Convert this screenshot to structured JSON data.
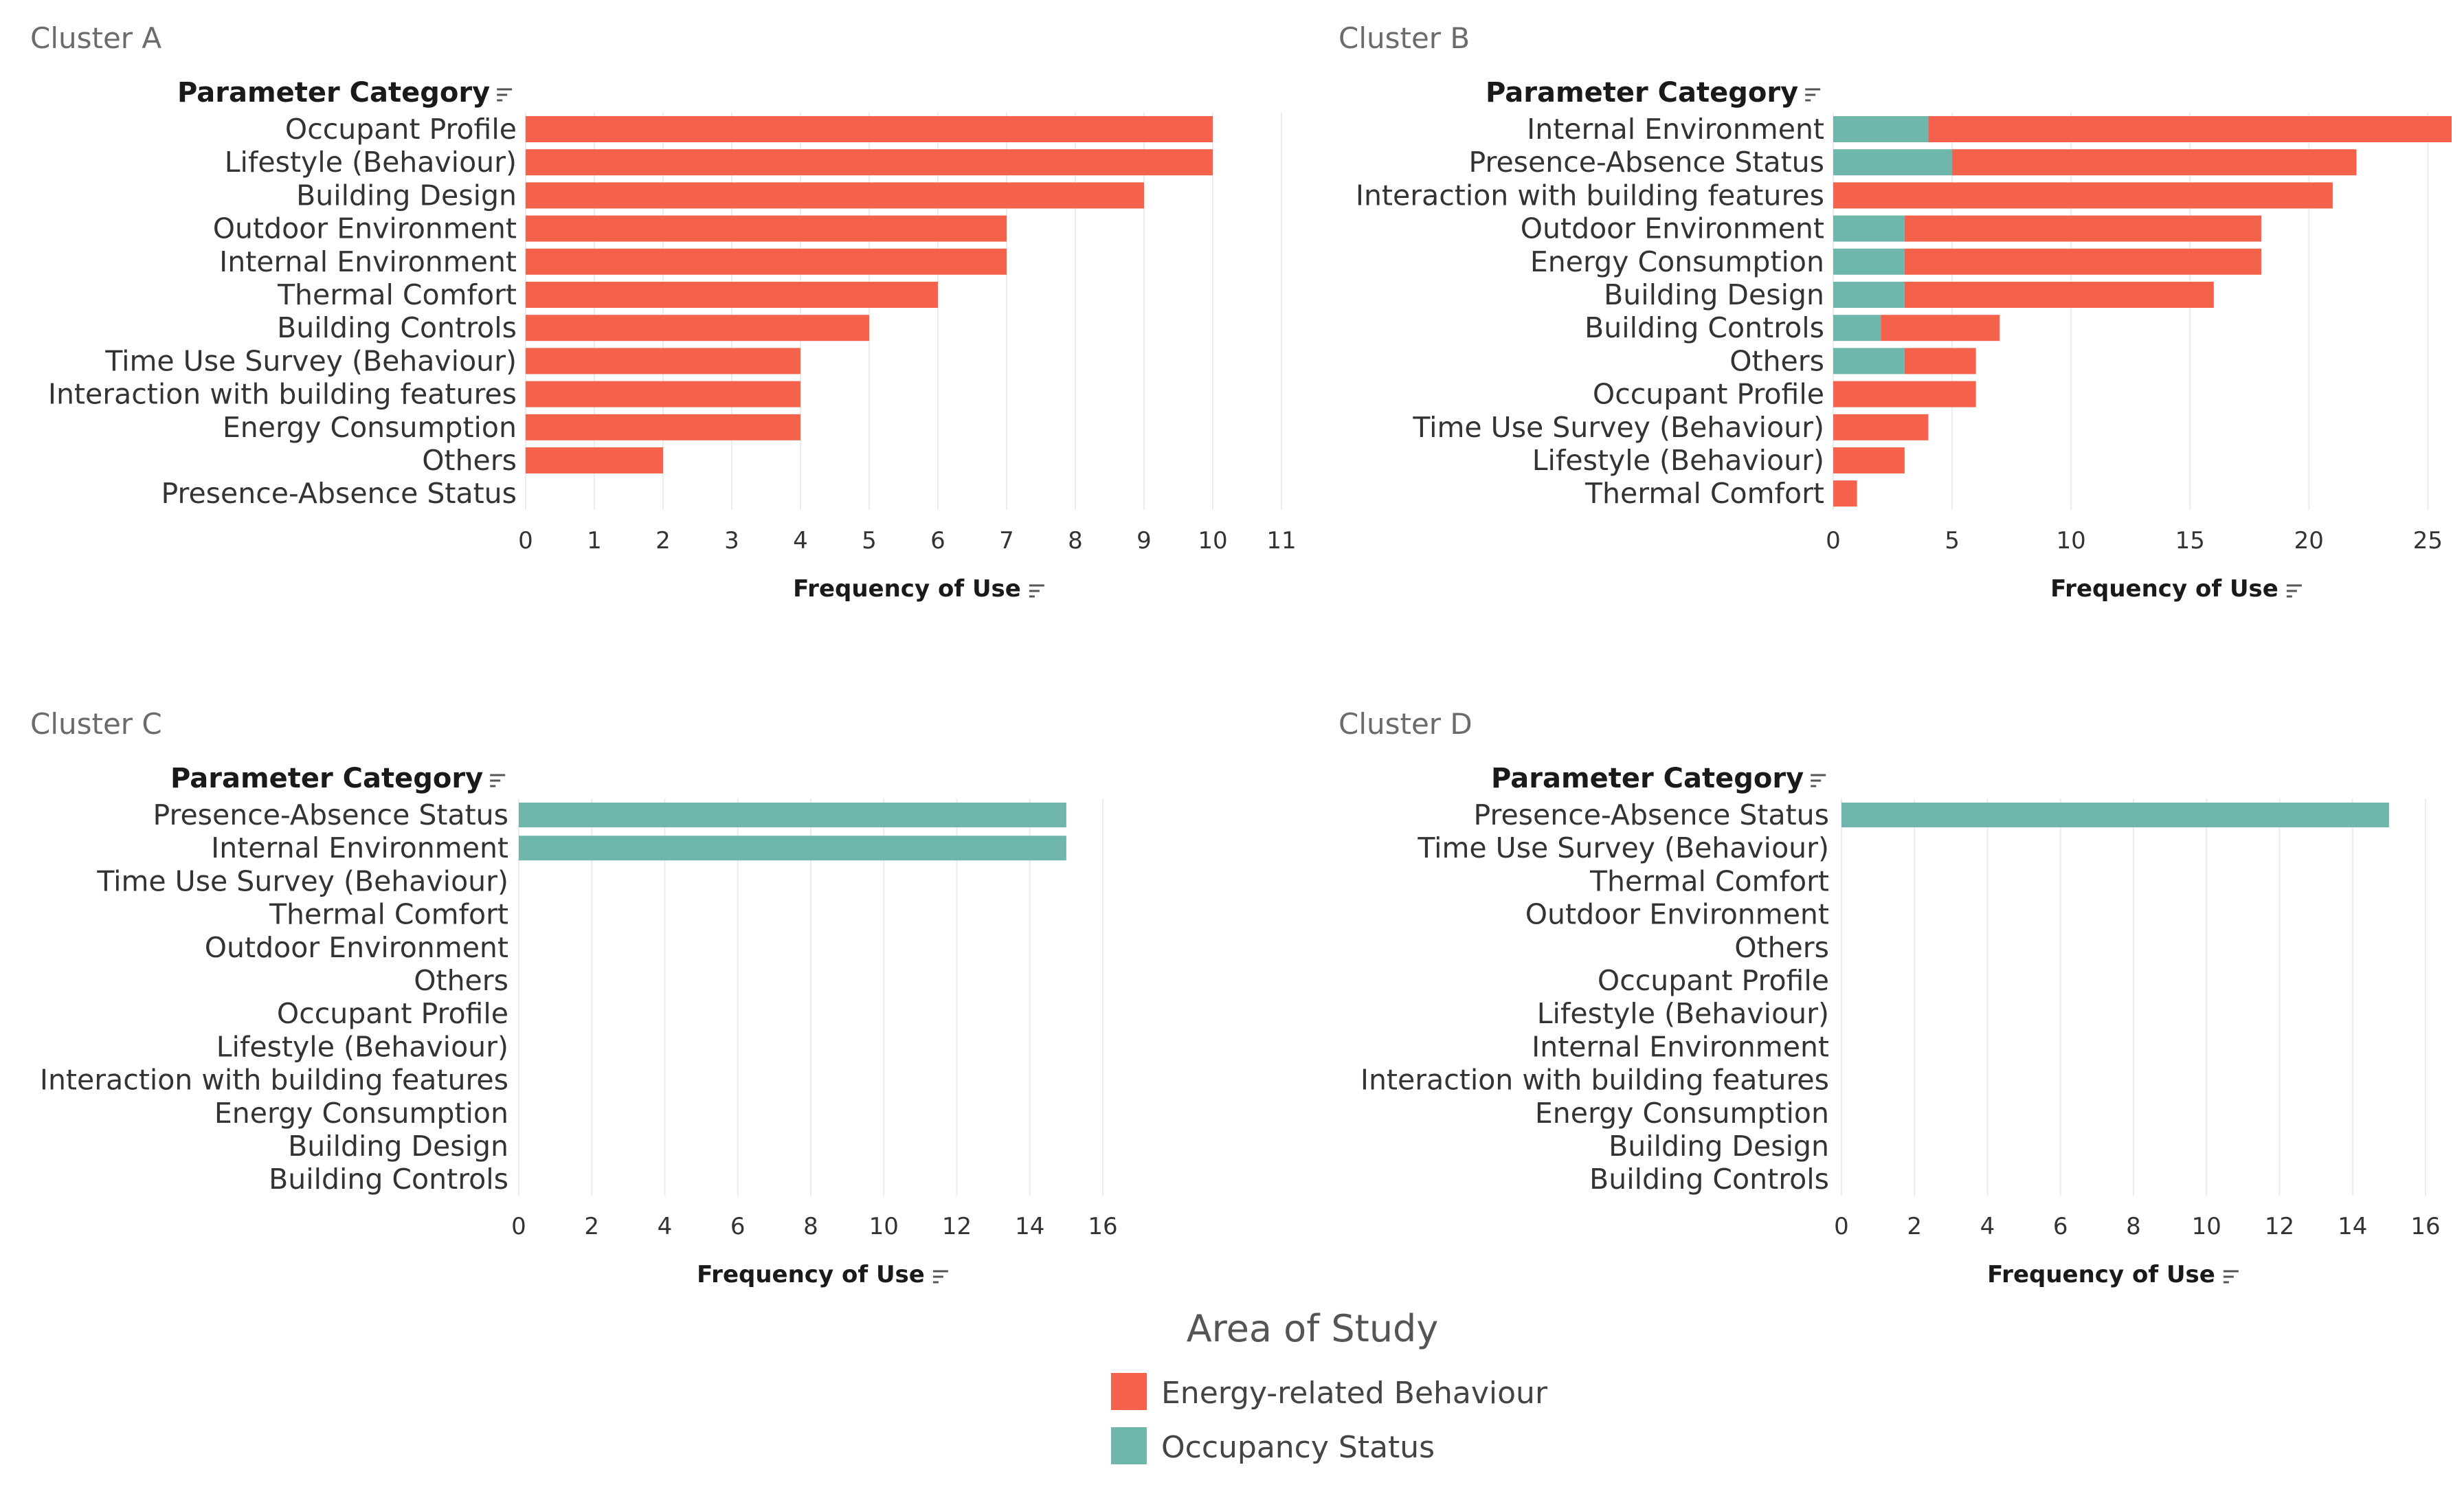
{
  "colors": {
    "Energy-related Behaviour": "#f4624c",
    "Occupancy Status": "#6fb7ad"
  },
  "icons": {
    "sort": "sort-descending-icon"
  },
  "legend": {
    "title": "Area of Study",
    "items": [
      "Energy-related Behaviour",
      "Occupancy Status"
    ]
  },
  "chart_data": [
    {
      "type": "bar",
      "orientation": "horizontal",
      "stacked": true,
      "title": "Cluster A",
      "category_header": "Parameter Category",
      "xlabel": "Frequency of Use",
      "xlim": [
        0,
        11
      ],
      "ticks": [
        0,
        1,
        2,
        3,
        4,
        5,
        6,
        7,
        8,
        9,
        10,
        11
      ],
      "categories": [
        "Occupant Profile",
        "Lifestyle (Behaviour)",
        "Building Design",
        "Outdoor Environment",
        "Internal Environment",
        "Thermal Comfort",
        "Building Controls",
        "Time Use Survey (Behaviour)",
        "Interaction with building features",
        "Energy Consumption",
        "Others",
        "Presence-Absence Status"
      ],
      "series": [
        {
          "name": "Occupancy Status",
          "values": [
            0,
            0,
            0,
            0,
            0,
            0,
            0,
            0,
            0,
            0,
            0,
            0
          ]
        },
        {
          "name": "Energy-related Behaviour",
          "values": [
            10,
            10,
            9,
            7,
            7,
            6,
            5,
            4,
            4,
            4,
            2,
            0
          ]
        }
      ]
    },
    {
      "type": "bar",
      "orientation": "horizontal",
      "stacked": true,
      "title": "Cluster B",
      "category_header": "Parameter Category",
      "xlabel": "Frequency of Use",
      "xlim": [
        0,
        26
      ],
      "ticks": [
        0,
        5,
        10,
        15,
        20,
        25
      ],
      "categories": [
        "Internal Environment",
        "Presence-Absence Status",
        "Interaction with building features",
        "Outdoor Environment",
        "Energy Consumption",
        "Building Design",
        "Building Controls",
        "Others",
        "Occupant Profile",
        "Time Use Survey (Behaviour)",
        "Lifestyle (Behaviour)",
        "Thermal Comfort"
      ],
      "series": [
        {
          "name": "Occupancy Status",
          "values": [
            4,
            5,
            0,
            3,
            3,
            3,
            2,
            3,
            0,
            0,
            0,
            0
          ]
        },
        {
          "name": "Energy-related Behaviour",
          "values": [
            22,
            17,
            21,
            15,
            15,
            13,
            5,
            3,
            6,
            4,
            3,
            1
          ]
        }
      ]
    },
    {
      "type": "bar",
      "orientation": "horizontal",
      "stacked": true,
      "title": "Cluster C",
      "category_header": "Parameter Category",
      "xlabel": "Frequency of Use",
      "xlim": [
        0,
        16
      ],
      "ticks": [
        0,
        2,
        4,
        6,
        8,
        10,
        12,
        14,
        16
      ],
      "categories": [
        "Presence-Absence Status",
        "Internal Environment",
        "Time Use Survey (Behaviour)",
        "Thermal Comfort",
        "Outdoor Environment",
        "Others",
        "Occupant Profile",
        "Lifestyle (Behaviour)",
        "Interaction with building features",
        "Energy Consumption",
        "Building Design",
        "Building Controls"
      ],
      "series": [
        {
          "name": "Occupancy Status",
          "values": [
            15,
            15,
            0,
            0,
            0,
            0,
            0,
            0,
            0,
            0,
            0,
            0
          ]
        },
        {
          "name": "Energy-related Behaviour",
          "values": [
            0,
            0,
            0,
            0,
            0,
            0,
            0,
            0,
            0,
            0,
            0,
            0
          ]
        }
      ]
    },
    {
      "type": "bar",
      "orientation": "horizontal",
      "stacked": true,
      "title": "Cluster D",
      "category_header": "Parameter Category",
      "xlabel": "Frequency of Use",
      "xlim": [
        0,
        16
      ],
      "ticks": [
        0,
        2,
        4,
        6,
        8,
        10,
        12,
        14,
        16
      ],
      "categories": [
        "Presence-Absence Status",
        "Time Use Survey (Behaviour)",
        "Thermal Comfort",
        "Outdoor Environment",
        "Others",
        "Occupant Profile",
        "Lifestyle (Behaviour)",
        "Internal Environment",
        "Interaction with building features",
        "Energy Consumption",
        "Building Design",
        "Building Controls"
      ],
      "series": [
        {
          "name": "Occupancy Status",
          "values": [
            15,
            0,
            0,
            0,
            0,
            0,
            0,
            0,
            0,
            0,
            0,
            0
          ]
        },
        {
          "name": "Energy-related Behaviour",
          "values": [
            0,
            0,
            0,
            0,
            0,
            0,
            0,
            0,
            0,
            0,
            0,
            0
          ]
        }
      ]
    }
  ]
}
